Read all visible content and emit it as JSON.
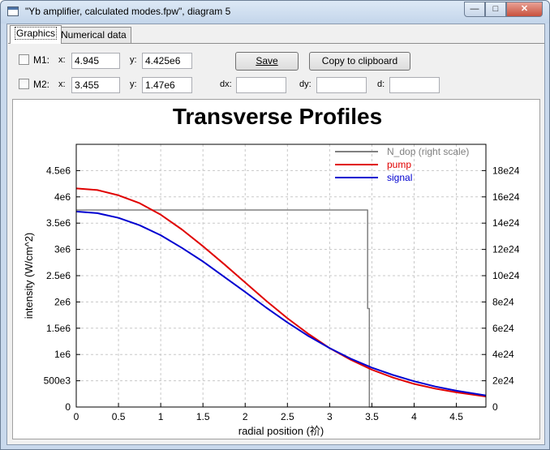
{
  "window": {
    "title": "\"Yb amplifier, calculated modes.fpw\", diagram 5",
    "minimize_glyph": "—",
    "maximize_glyph": "□",
    "close_glyph": "✕"
  },
  "tabs": [
    {
      "label": "Graphics",
      "active": true
    },
    {
      "label": "Numerical data",
      "active": false
    }
  ],
  "markers": {
    "m1": {
      "label": "M1:",
      "x_label": "x:",
      "x_value": "4.945",
      "y_label": "y:",
      "y_value": "4.425e6"
    },
    "m2": {
      "label": "M2:",
      "x_label": "x:",
      "x_value": "3.455",
      "y_label": "y:",
      "y_value": "1.47e6"
    }
  },
  "buttons": {
    "save": {
      "label": "Save"
    },
    "copy": {
      "label": "Copy to clipboard"
    }
  },
  "deltas": {
    "dx_label": "dx:",
    "dx_value": "",
    "dy_label": "dy:",
    "dy_value": "",
    "d_label": "d:",
    "d_value": ""
  },
  "chart_data": {
    "type": "line",
    "title": "Transverse Profiles",
    "xlabel": "radial position (祄)",
    "ylabel": "intensity (W/cm^2)",
    "xlim": [
      0,
      4.85
    ],
    "ylim": [
      0,
      5000000.0
    ],
    "y2lim": [
      0,
      2e+25
    ],
    "x_ticks": [
      "0",
      "0.5",
      "1",
      "1.5",
      "2",
      "2.5",
      "3",
      "3.5",
      "4",
      "4.5"
    ],
    "y_ticks": [
      "0",
      "500e3",
      "1e6",
      "1.5e6",
      "2e6",
      "2.5e6",
      "3e6",
      "3.5e6",
      "4e6",
      "4.5e6"
    ],
    "y2_ticks": [
      "0",
      "2e24",
      "4e24",
      "6e24",
      "8e24",
      "10e24",
      "12e24",
      "14e24",
      "16e24",
      "18e24"
    ],
    "grid": true,
    "legend_position": "top-right",
    "series": [
      {
        "name": "N_dop (right scale)",
        "color": "#808080",
        "axis": "right",
        "x": [
          0,
          3.45,
          3.45,
          3.47,
          3.47,
          4.85
        ],
        "y": [
          1.5e+25,
          1.5e+25,
          7.5e+24,
          7.5e+24,
          0,
          0
        ]
      },
      {
        "name": "pump",
        "color": "#e00000",
        "axis": "left",
        "x": [
          0,
          0.25,
          0.5,
          0.75,
          1.0,
          1.25,
          1.5,
          1.75,
          2.0,
          2.25,
          2.5,
          2.75,
          3.0,
          3.25,
          3.5,
          3.75,
          4.0,
          4.25,
          4.5,
          4.85
        ],
        "y": [
          4160000.0,
          4130000.0,
          4030000.0,
          3880000.0,
          3660000.0,
          3380000.0,
          3060000.0,
          2720000.0,
          2370000.0,
          2020000.0,
          1690000.0,
          1390000.0,
          1120000.0,
          900000.0,
          710000.0,
          560000.0,
          440000.0,
          350000.0,
          280000.0,
          200000.0
        ]
      },
      {
        "name": "signal",
        "color": "#0000d0",
        "axis": "left",
        "x": [
          0,
          0.25,
          0.5,
          0.75,
          1.0,
          1.25,
          1.5,
          1.75,
          2.0,
          2.25,
          2.5,
          2.75,
          3.0,
          3.25,
          3.5,
          3.75,
          4.0,
          4.25,
          4.5,
          4.85
        ],
        "y": [
          3720000.0,
          3690000.0,
          3600000.0,
          3460000.0,
          3270000.0,
          3030000.0,
          2770000.0,
          2480000.0,
          2190000.0,
          1890000.0,
          1610000.0,
          1350000.0,
          1120000.0,
          920000.0,
          750000.0,
          610000.0,
          490000.0,
          390000.0,
          310000.0,
          220000.0
        ]
      }
    ]
  }
}
